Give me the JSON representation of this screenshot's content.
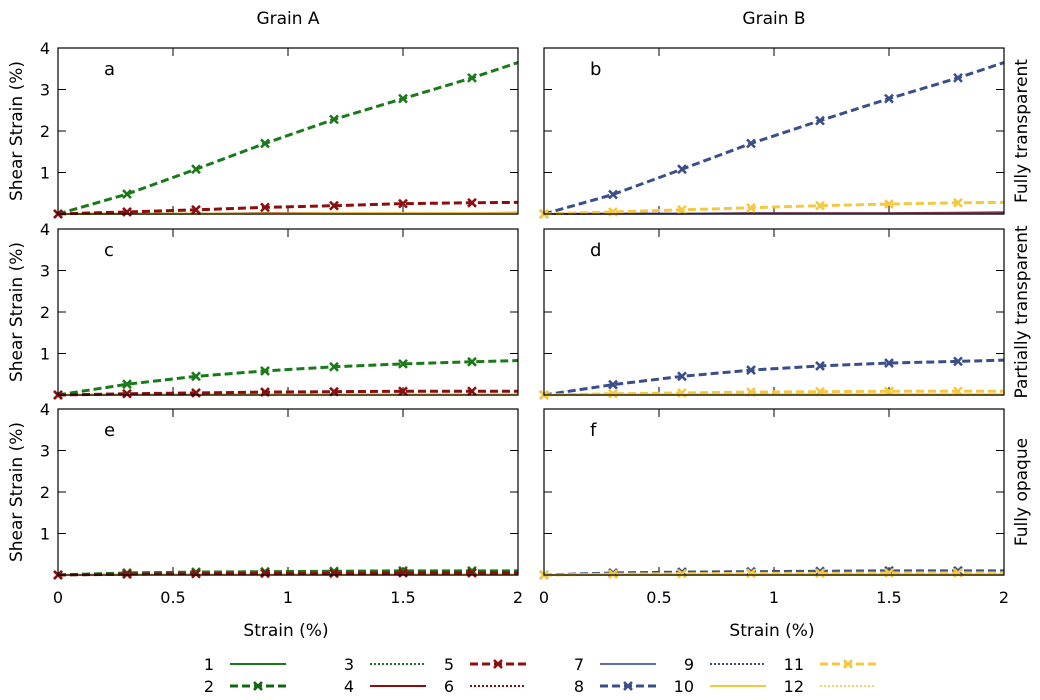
{
  "columns": [
    "Grain A",
    "Grain B"
  ],
  "rows": [
    "Fully transparent",
    "Partially transparent",
    "Fully opaque"
  ],
  "colors": {
    "g": "#1a7a1a",
    "gd": "#116611",
    "r": "#8b0f0f",
    "b": "#3a4f8a",
    "bl": "#5a6fb0",
    "y": "#f5c842",
    "yl": "#f7d46a"
  },
  "chart_data": {
    "type": "line",
    "xlabel": "Strain (%)",
    "ylabel": "Shear Strain (%)",
    "xlim": [
      0,
      2
    ],
    "ylim": [
      0,
      4
    ],
    "xticks": [
      0,
      0.5,
      1,
      1.5,
      2
    ],
    "xtick_labels": [
      "0",
      "0.5",
      "1",
      "1.5",
      "2"
    ],
    "yticks": [
      1,
      2,
      3,
      4
    ],
    "ytick_labels": [
      "1",
      "2",
      "3",
      "4"
    ],
    "x": [
      0,
      0.3,
      0.6,
      0.9,
      1.2,
      1.5,
      1.8,
      2.0
    ],
    "panels": [
      {
        "letter": "a",
        "series": [
          {
            "name": "2",
            "color": "g",
            "dash": "8,4",
            "marker": true,
            "values": [
              0,
              0.48,
              1.08,
              1.7,
              2.28,
              2.78,
              3.28,
              3.65
            ]
          },
          {
            "name": "5",
            "color": "r",
            "dash": "8,4",
            "marker": true,
            "values": [
              0,
              0.05,
              0.1,
              0.16,
              0.2,
              0.25,
              0.27,
              0.28
            ]
          },
          {
            "name": "4",
            "color": "r",
            "dash": "",
            "marker": false,
            "values": [
              0,
              0.01,
              0.01,
              0.02,
              0.02,
              0.02,
              0.02,
              0.03
            ]
          },
          {
            "name": "1",
            "color": "gd",
            "dash": "",
            "marker": false,
            "values": [
              0,
              0.01,
              0.01,
              0.01,
              0.01,
              0.01,
              0.01,
              0.01
            ]
          },
          {
            "name": "10",
            "color": "y",
            "dash": "",
            "marker": false,
            "values": [
              0,
              0.01,
              0.01,
              0.01,
              0.02,
              0.02,
              0.02,
              0.02
            ]
          }
        ]
      },
      {
        "letter": "b",
        "series": [
          {
            "name": "8",
            "color": "b",
            "dash": "8,4",
            "marker": true,
            "values": [
              0,
              0.47,
              1.08,
              1.7,
              2.25,
              2.78,
              3.28,
              3.65
            ]
          },
          {
            "name": "11",
            "color": "y",
            "dash": "8,4",
            "marker": true,
            "values": [
              0,
              0.05,
              0.1,
              0.15,
              0.2,
              0.24,
              0.27,
              0.28
            ]
          },
          {
            "name": "4",
            "color": "r",
            "dash": "",
            "marker": false,
            "values": [
              0,
              0.01,
              0.01,
              0.02,
              0.02,
              0.02,
              0.03,
              0.04
            ]
          },
          {
            "name": "7",
            "color": "bl",
            "dash": "",
            "marker": false,
            "values": [
              0,
              0.01,
              0.01,
              0.01,
              0.01,
              0.01,
              0.01,
              0.01
            ]
          }
        ]
      },
      {
        "letter": "c",
        "series": [
          {
            "name": "2",
            "color": "g",
            "dash": "8,4",
            "marker": true,
            "values": [
              0,
              0.26,
              0.45,
              0.58,
              0.68,
              0.75,
              0.8,
              0.83
            ]
          },
          {
            "name": "5",
            "color": "r",
            "dash": "8,4",
            "marker": true,
            "values": [
              0,
              0.03,
              0.05,
              0.07,
              0.08,
              0.09,
              0.09,
              0.09
            ]
          },
          {
            "name": "4",
            "color": "r",
            "dash": "",
            "marker": false,
            "values": [
              0,
              0.01,
              0.01,
              0.01,
              0.01,
              0.01,
              0.01,
              0.01
            ]
          },
          {
            "name": "10",
            "color": "y",
            "dash": "",
            "marker": false,
            "values": [
              0,
              0.01,
              0.01,
              0.01,
              0.01,
              0.01,
              0.01,
              0.01
            ]
          }
        ]
      },
      {
        "letter": "d",
        "series": [
          {
            "name": "8",
            "color": "b",
            "dash": "8,4",
            "marker": true,
            "values": [
              0,
              0.25,
              0.45,
              0.6,
              0.7,
              0.77,
              0.81,
              0.84
            ]
          },
          {
            "name": "11",
            "color": "y",
            "dash": "8,4",
            "marker": true,
            "values": [
              0,
              0.03,
              0.05,
              0.07,
              0.08,
              0.09,
              0.09,
              0.09
            ]
          },
          {
            "name": "7",
            "color": "bl",
            "dash": "",
            "marker": false,
            "values": [
              0,
              0.01,
              0.01,
              0.01,
              0.01,
              0.01,
              0.01,
              0.01
            ]
          },
          {
            "name": "10",
            "color": "y",
            "dash": "",
            "marker": false,
            "values": [
              0,
              0.01,
              0.01,
              0.01,
              0.01,
              0.01,
              0.01,
              0.01
            ]
          }
        ]
      },
      {
        "letter": "e",
        "series": [
          {
            "name": "2",
            "color": "g",
            "dash": "8,4",
            "marker": true,
            "values": [
              0,
              0.05,
              0.07,
              0.08,
              0.09,
              0.1,
              0.1,
              0.1
            ]
          },
          {
            "name": "5",
            "color": "r",
            "dash": "8,4",
            "marker": true,
            "values": [
              0,
              0.02,
              0.03,
              0.04,
              0.04,
              0.05,
              0.05,
              0.05
            ]
          },
          {
            "name": "1",
            "color": "gd",
            "dash": "",
            "marker": false,
            "values": [
              0,
              0.01,
              0.01,
              0.01,
              0.01,
              0.01,
              0.01,
              0.01
            ]
          },
          {
            "name": "10",
            "color": "y",
            "dash": "",
            "marker": false,
            "values": [
              0,
              0.01,
              0.01,
              0.01,
              0.01,
              0.01,
              0.01,
              0.01
            ]
          }
        ]
      },
      {
        "letter": "f",
        "series": [
          {
            "name": "8",
            "color": "b",
            "dash": "8,4",
            "marker": true,
            "values": [
              0,
              0.05,
              0.07,
              0.08,
              0.09,
              0.1,
              0.1,
              0.1
            ]
          },
          {
            "name": "11",
            "color": "y",
            "dash": "8,4",
            "marker": true,
            "values": [
              0,
              0.02,
              0.03,
              0.04,
              0.04,
              0.05,
              0.05,
              0.05
            ]
          },
          {
            "name": "4",
            "color": "r",
            "dash": "",
            "marker": false,
            "values": [
              0,
              0.01,
              0.01,
              0.01,
              0.01,
              0.01,
              0.01,
              0.01
            ]
          },
          {
            "name": "10",
            "color": "y",
            "dash": "",
            "marker": false,
            "values": [
              0,
              0.01,
              0.01,
              0.01,
              0.01,
              0.01,
              0.01,
              0.01
            ]
          }
        ]
      }
    ],
    "legend": [
      {
        "name": "1",
        "color": "g",
        "dash": "",
        "marker": false
      },
      {
        "name": "2",
        "color": "gd",
        "dash": "8,4",
        "marker": true
      },
      {
        "name": "3",
        "color": "g",
        "dash": "2,2",
        "marker": false
      },
      {
        "name": "4",
        "color": "r",
        "dash": "",
        "marker": false
      },
      {
        "name": "5",
        "color": "r",
        "dash": "8,4",
        "marker": true
      },
      {
        "name": "6",
        "color": "r",
        "dash": "2,2",
        "marker": false
      },
      {
        "name": "7",
        "color": "bl",
        "dash": "",
        "marker": false
      },
      {
        "name": "8",
        "color": "b",
        "dash": "8,4",
        "marker": true
      },
      {
        "name": "9",
        "color": "b",
        "dash": "2,2",
        "marker": false
      },
      {
        "name": "10",
        "color": "y",
        "dash": "",
        "marker": false
      },
      {
        "name": "11",
        "color": "y",
        "dash": "8,4",
        "marker": true
      },
      {
        "name": "12",
        "color": "yl",
        "dash": "2,2",
        "marker": false
      }
    ],
    "legend_placement": "bottom"
  }
}
